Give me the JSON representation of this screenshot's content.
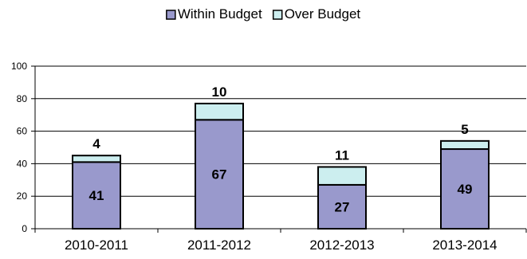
{
  "chart_data": {
    "type": "bar",
    "stacked": true,
    "categories": [
      "2010-2011",
      "2011-2012",
      "2012-2013",
      "2013-2014"
    ],
    "series": [
      {
        "name": "Within Budget",
        "values": [
          41,
          67,
          27,
          49
        ],
        "data_labels": [
          "41",
          "67",
          "27",
          "49"
        ],
        "color": "#9999cc"
      },
      {
        "name": "Over Budget",
        "values": [
          4,
          10,
          11,
          5
        ],
        "data_labels": [
          "4",
          "10",
          "11",
          "5"
        ],
        "color": "#cceeef"
      }
    ],
    "y_tick_values": [
      0,
      20,
      40,
      60,
      80,
      100
    ],
    "y_tick_labels": [
      "0",
      "20",
      "40",
      "60",
      "80",
      "100"
    ],
    "ylim": [
      0,
      100
    ],
    "grid": true,
    "legend_position": "top-center",
    "title": "",
    "xlabel": "",
    "ylabel": ""
  }
}
